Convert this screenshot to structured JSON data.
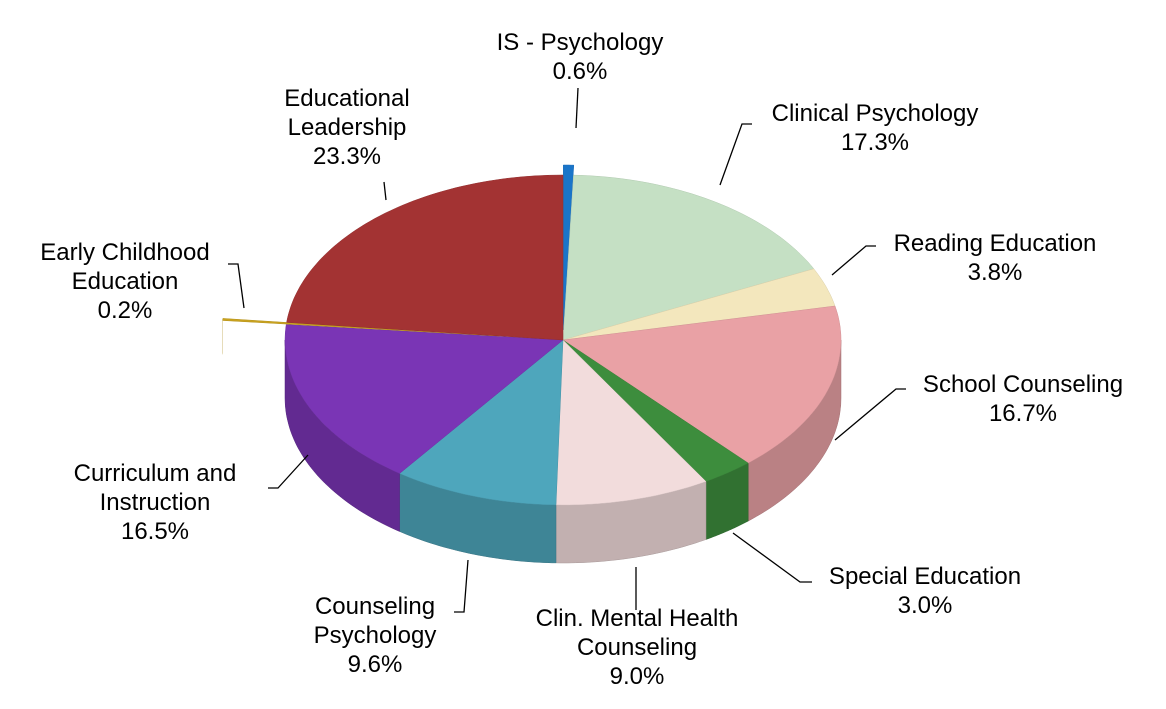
{
  "chart_data": {
    "type": "pie",
    "categories": [
      "IS - Psychology",
      "Clinical Psychology",
      "Reading Education",
      "School Counseling",
      "Special Education",
      "Clin. Mental Health Counseling",
      "Counseling Psychology",
      "Curriculum and Instruction",
      "Early Childhood Education",
      "Educational Leadership"
    ],
    "values": [
      0.6,
      17.3,
      3.8,
      16.7,
      3.0,
      9.0,
      9.6,
      16.5,
      0.2,
      23.3
    ],
    "value_labels": [
      "0.6%",
      "17.3%",
      "3.8%",
      "16.7%",
      "3.0%",
      "9.0%",
      "9.6%",
      "16.5%",
      "0.2%",
      "23.3%"
    ],
    "colors": [
      "#1a75c9",
      "#c5e0c4",
      "#f3e7bd",
      "#e9a1a5",
      "#3d8d3d",
      "#f2dcdc",
      "#4ea6bc",
      "#7a35b5",
      "#c9a21e",
      "#a33333"
    ]
  }
}
